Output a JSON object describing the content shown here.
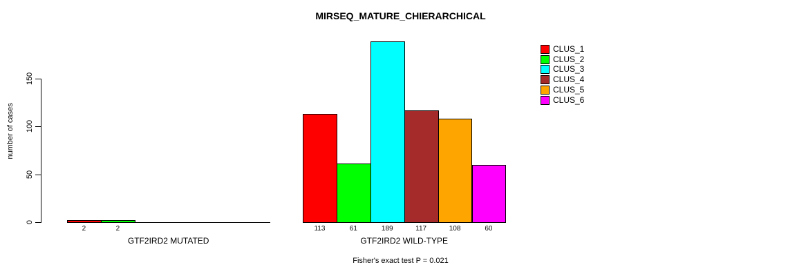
{
  "chart_data": {
    "type": "bar",
    "title": "MIRSEQ_MATURE_CHIERARCHICAL",
    "ylabel": "number of cases",
    "xlabel": "",
    "yticks": [
      0,
      50,
      100,
      150
    ],
    "ylim": [
      0,
      189
    ],
    "grid": false,
    "legend_position": "right",
    "legend": [
      {
        "label": "CLUS_1",
        "color": "#FF0000"
      },
      {
        "label": "CLUS_2",
        "color": "#00FF00"
      },
      {
        "label": "CLUS_3",
        "color": "#00FFFF"
      },
      {
        "label": "CLUS_4",
        "color": "#A52A2A"
      },
      {
        "label": "CLUS_5",
        "color": "#FFA500"
      },
      {
        "label": "CLUS_6",
        "color": "#FF00FF"
      }
    ],
    "groups": [
      {
        "label": "GTF2IRD2 MUTATED",
        "values": [
          2,
          2,
          0,
          0,
          0,
          0
        ]
      },
      {
        "label": "GTF2IRD2 WILD-TYPE",
        "values": [
          113,
          61,
          189,
          117,
          108,
          60
        ]
      }
    ],
    "footnote": "Fisher's exact test P = 0.021"
  }
}
